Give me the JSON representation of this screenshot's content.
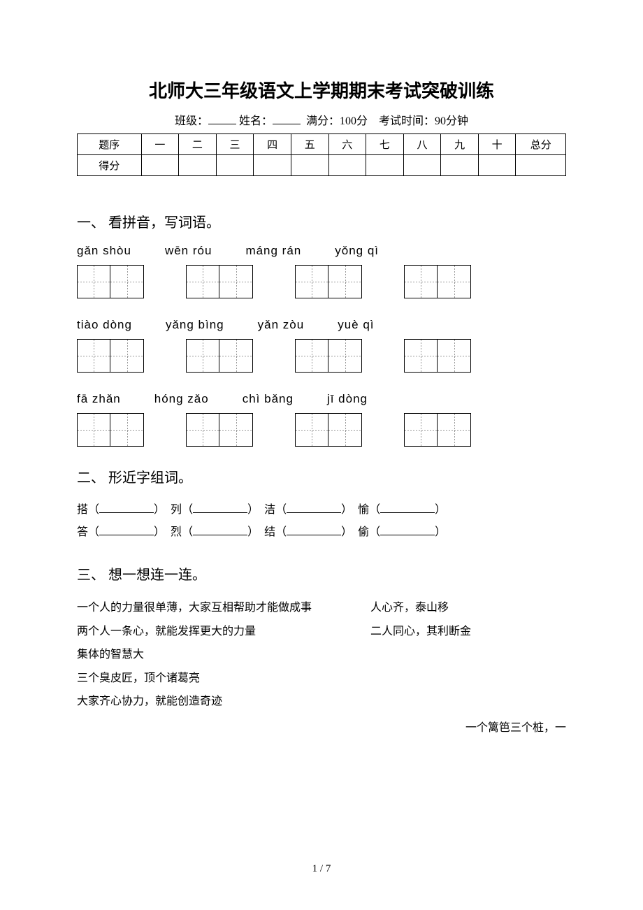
{
  "title": "北师大三年级语文上学期期末考试突破训练",
  "meta": {
    "class_label": "班级：",
    "name_label": "姓名：",
    "full_score": "满分：100分",
    "time": "考试时间：90分钟"
  },
  "score_table": {
    "row1_label": "题序",
    "cols": [
      "一",
      "二",
      "三",
      "四",
      "五",
      "六",
      "七",
      "八",
      "九",
      "十"
    ],
    "total": "总分",
    "row2_label": "得分"
  },
  "section1": {
    "title": "一、 看拼音，写词语。",
    "rows": [
      [
        "gǎn shòu",
        "wēn róu",
        "máng rán",
        "yǒng qì"
      ],
      [
        "tiào dòng",
        "yǎng bìng",
        "yǎn zòu",
        "yuè qì"
      ],
      [
        "fā  zhǎn",
        "hóng zǎo",
        "chì bǎng",
        "jī dòng"
      ]
    ]
  },
  "section2": {
    "title": "二、 形近字组词。",
    "pairs": [
      [
        "搭",
        "列",
        "洁",
        "愉"
      ],
      [
        "答",
        "烈",
        "结",
        "偷"
      ]
    ]
  },
  "section3": {
    "title": "三、 想一想连一连。",
    "lines": [
      {
        "left": "一个人的力量很单薄，大家互相帮助才能做成事",
        "right": "人心齐，泰山移"
      },
      {
        "left": "两个人一条心，就能发挥更大的力量",
        "right": "二人同心，其利断金"
      },
      {
        "left": "集体的智慧大",
        "right": ""
      },
      {
        "left": "三个臭皮匠，顶个诸葛亮",
        "right": ""
      },
      {
        "left": "大家齐心协力，就能创造奇迹",
        "right": ""
      }
    ],
    "trail": "一个篱笆三个桩，一"
  },
  "footer": "1 / 7"
}
